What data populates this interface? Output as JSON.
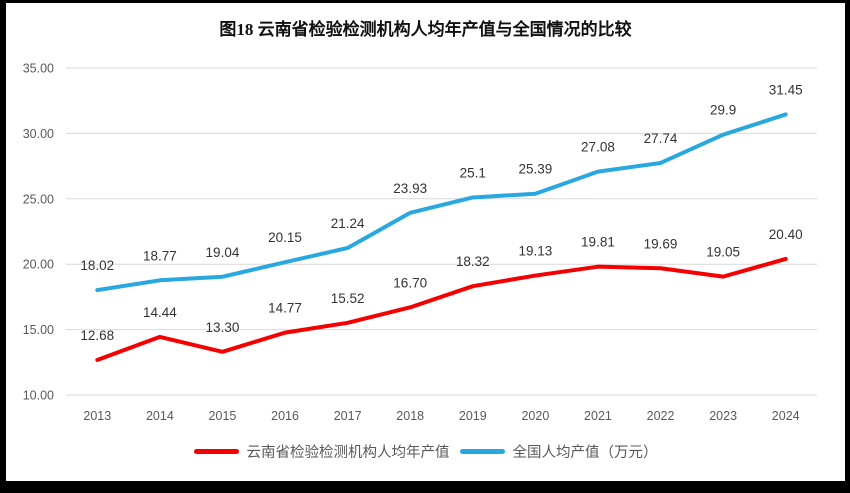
{
  "chart_data": {
    "type": "line",
    "title": "图18  云南省检验检测机构人均年产值与全国情况的比较",
    "categories": [
      "2013",
      "2014",
      "2015",
      "2016",
      "2017",
      "2018",
      "2019",
      "2020",
      "2021",
      "2022",
      "2023",
      "2024"
    ],
    "series": [
      {
        "name": "云南省检验检测机构人均年产值",
        "color": "#F40000",
        "values": [
          12.68,
          14.44,
          13.3,
          14.77,
          15.52,
          16.7,
          18.32,
          19.13,
          19.81,
          19.69,
          19.05,
          20.4
        ],
        "labels": [
          "12.68",
          "14.44",
          "13.30",
          "14.77",
          "15.52",
          "16.70",
          "18.32",
          "19.13",
          "19.81",
          "19.69",
          "19.05",
          "20.40"
        ]
      },
      {
        "name": "全国人均产值（万元）",
        "color": "#29A8E0",
        "values": [
          18.02,
          18.77,
          19.04,
          20.15,
          21.24,
          23.93,
          25.1,
          25.39,
          27.08,
          27.74,
          29.9,
          31.45
        ],
        "labels": [
          "18.02",
          "18.77",
          "19.04",
          "20.15",
          "21.24",
          "23.93",
          "25.1",
          "25.39",
          "27.08",
          "27.74",
          "29.9",
          "31.45"
        ]
      }
    ],
    "xlabel": "",
    "ylabel": "",
    "ylim": [
      10,
      35
    ],
    "yticks": [
      {
        "label": "35.00",
        "value": 35
      },
      {
        "label": "30.00",
        "value": 30
      },
      {
        "label": "25.00",
        "value": 25
      },
      {
        "label": "20.00",
        "value": 20
      },
      {
        "label": "15.00",
        "value": 15
      },
      {
        "label": "10.00",
        "value": 10
      }
    ],
    "grid": "horizontal",
    "gridline_color": "#D9D9D9",
    "legend_position": "bottom"
  }
}
